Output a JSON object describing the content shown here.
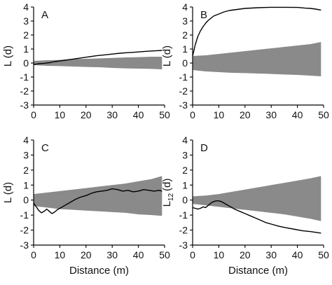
{
  "figure": {
    "xlabel": "Distance (m)"
  },
  "chart_data": [
    {
      "type": "line",
      "panel": "A",
      "ylabel_main": "L (d)",
      "ylabel_sub": "",
      "ylabel_tail": "",
      "xlabel": "",
      "xlim": [
        0,
        50
      ],
      "ylim": [
        -3,
        4
      ],
      "xticks": [
        "0",
        "10",
        "20",
        "30",
        "40",
        "50"
      ],
      "yticks": [
        "-3",
        "-2",
        "-1",
        "0",
        "1",
        "2",
        "3",
        "4"
      ],
      "envelope": {
        "x": [
          0,
          5,
          10,
          15,
          20,
          25,
          30,
          35,
          40,
          45,
          49
        ],
        "upper": [
          0.15,
          0.2,
          0.22,
          0.28,
          0.3,
          0.33,
          0.36,
          0.4,
          0.42,
          0.45,
          0.45
        ],
        "lower": [
          -0.15,
          -0.2,
          -0.22,
          -0.25,
          -0.28,
          -0.3,
          -0.35,
          -0.38,
          -0.4,
          -0.42,
          -0.45
        ]
      },
      "series": [
        {
          "x": [
            0,
            1,
            2,
            4,
            6,
            8,
            10,
            12,
            15,
            18,
            21,
            24,
            27,
            30,
            33,
            36,
            39,
            42,
            45,
            47,
            49
          ],
          "y": [
            -0.1,
            -0.08,
            -0.05,
            -0.02,
            0.02,
            0.1,
            0.15,
            0.2,
            0.28,
            0.36,
            0.44,
            0.52,
            0.58,
            0.64,
            0.7,
            0.74,
            0.78,
            0.82,
            0.86,
            0.88,
            0.9
          ]
        }
      ]
    },
    {
      "type": "line",
      "panel": "B",
      "ylabel_main": "L (d)",
      "ylabel_sub": "",
      "ylabel_tail": "",
      "xlabel": "",
      "xlim": [
        0,
        50
      ],
      "ylim": [
        -3,
        4
      ],
      "xticks": [
        "0",
        "10",
        "20",
        "30",
        "40",
        "50"
      ],
      "yticks": [
        "-3",
        "-2",
        "-1",
        "0",
        "1",
        "2",
        "3",
        "4"
      ],
      "envelope": {
        "x": [
          0,
          5,
          10,
          15,
          20,
          25,
          30,
          35,
          40,
          45,
          49
        ],
        "upper": [
          0.5,
          0.55,
          0.65,
          0.75,
          0.85,
          0.95,
          1.05,
          1.15,
          1.25,
          1.35,
          1.5
        ],
        "lower": [
          -0.5,
          -0.6,
          -0.65,
          -0.7,
          -0.72,
          -0.75,
          -0.78,
          -0.82,
          -0.85,
          -0.9,
          -0.95
        ]
      },
      "series": [
        {
          "x": [
            0,
            0.5,
            1,
            1.5,
            2,
            3,
            4,
            5,
            6,
            7,
            8,
            10,
            12,
            14,
            16,
            18,
            20,
            25,
            30,
            35,
            40,
            43,
            45,
            47,
            49
          ],
          "y": [
            0.5,
            0.9,
            1.3,
            1.6,
            1.9,
            2.3,
            2.6,
            2.85,
            3.05,
            3.2,
            3.35,
            3.5,
            3.65,
            3.75,
            3.8,
            3.85,
            3.9,
            3.95,
            3.98,
            3.98,
            3.97,
            3.92,
            3.9,
            3.85,
            3.78
          ]
        }
      ]
    },
    {
      "type": "line",
      "panel": "C",
      "ylabel_main": "L (d)",
      "ylabel_sub": "",
      "ylabel_tail": "",
      "xlabel": "Distance (m)",
      "xlim": [
        0,
        50
      ],
      "ylim": [
        -3,
        4
      ],
      "xticks": [
        "0",
        "10",
        "20",
        "30",
        "40",
        "50"
      ],
      "yticks": [
        "-3",
        "-2",
        "-1",
        "0",
        "1",
        "2",
        "3",
        "4"
      ],
      "envelope": {
        "x": [
          0,
          5,
          10,
          15,
          20,
          25,
          30,
          35,
          40,
          45,
          49
        ],
        "upper": [
          0.4,
          0.5,
          0.6,
          0.7,
          0.8,
          0.9,
          1.0,
          1.1,
          1.25,
          1.4,
          1.6
        ],
        "lower": [
          -0.4,
          -0.5,
          -0.6,
          -0.65,
          -0.7,
          -0.75,
          -0.8,
          -0.85,
          -0.95,
          -1.0,
          -1.05
        ]
      },
      "series": [
        {
          "x": [
            0,
            1,
            2,
            3,
            4,
            5,
            6,
            7,
            8,
            9,
            10,
            12,
            14,
            16,
            18,
            20,
            22,
            24,
            26,
            28,
            30,
            32,
            34,
            36,
            38,
            40,
            42,
            44,
            46,
            48,
            49
          ],
          "y": [
            -0.2,
            -0.45,
            -0.7,
            -0.85,
            -0.75,
            -0.6,
            -0.75,
            -0.9,
            -0.8,
            -0.65,
            -0.55,
            -0.35,
            -0.15,
            0.05,
            0.2,
            0.3,
            0.45,
            0.55,
            0.6,
            0.65,
            0.75,
            0.7,
            0.6,
            0.65,
            0.55,
            0.6,
            0.7,
            0.65,
            0.6,
            0.65,
            0.6
          ]
        }
      ]
    },
    {
      "type": "line",
      "panel": "D",
      "ylabel_main": "L",
      "ylabel_sub": "12",
      "ylabel_tail": "(d)",
      "xlabel": "Distance (m)",
      "xlim": [
        0,
        50
      ],
      "ylim": [
        -3,
        4
      ],
      "xticks": [
        "0",
        "10",
        "20",
        "30",
        "40",
        "50"
      ],
      "yticks": [
        "-3",
        "-2",
        "-1",
        "0",
        "1",
        "2",
        "3",
        "4"
      ],
      "envelope": {
        "x": [
          0,
          5,
          10,
          15,
          20,
          25,
          30,
          35,
          40,
          45,
          49
        ],
        "upper": [
          0.25,
          0.3,
          0.4,
          0.55,
          0.7,
          0.85,
          1.0,
          1.15,
          1.3,
          1.45,
          1.6
        ],
        "lower": [
          -0.25,
          -0.35,
          -0.45,
          -0.55,
          -0.65,
          -0.75,
          -0.85,
          -0.95,
          -1.1,
          -1.25,
          -1.4
        ]
      },
      "series": [
        {
          "x": [
            0,
            1,
            2,
            3,
            4,
            5,
            6,
            7,
            8,
            9,
            10,
            11,
            12,
            13,
            14,
            15,
            16,
            18,
            20,
            22,
            24,
            26,
            28,
            30,
            33,
            36,
            39,
            42,
            45,
            47,
            49
          ],
          "y": [
            -0.5,
            -0.55,
            -0.6,
            -0.55,
            -0.45,
            -0.5,
            -0.35,
            -0.2,
            -0.1,
            -0.05,
            -0.05,
            -0.1,
            -0.2,
            -0.3,
            -0.4,
            -0.5,
            -0.6,
            -0.75,
            -0.9,
            -1.05,
            -1.2,
            -1.35,
            -1.5,
            -1.6,
            -1.75,
            -1.85,
            -1.95,
            -2.05,
            -2.1,
            -2.15,
            -2.2
          ]
        }
      ]
    }
  ]
}
